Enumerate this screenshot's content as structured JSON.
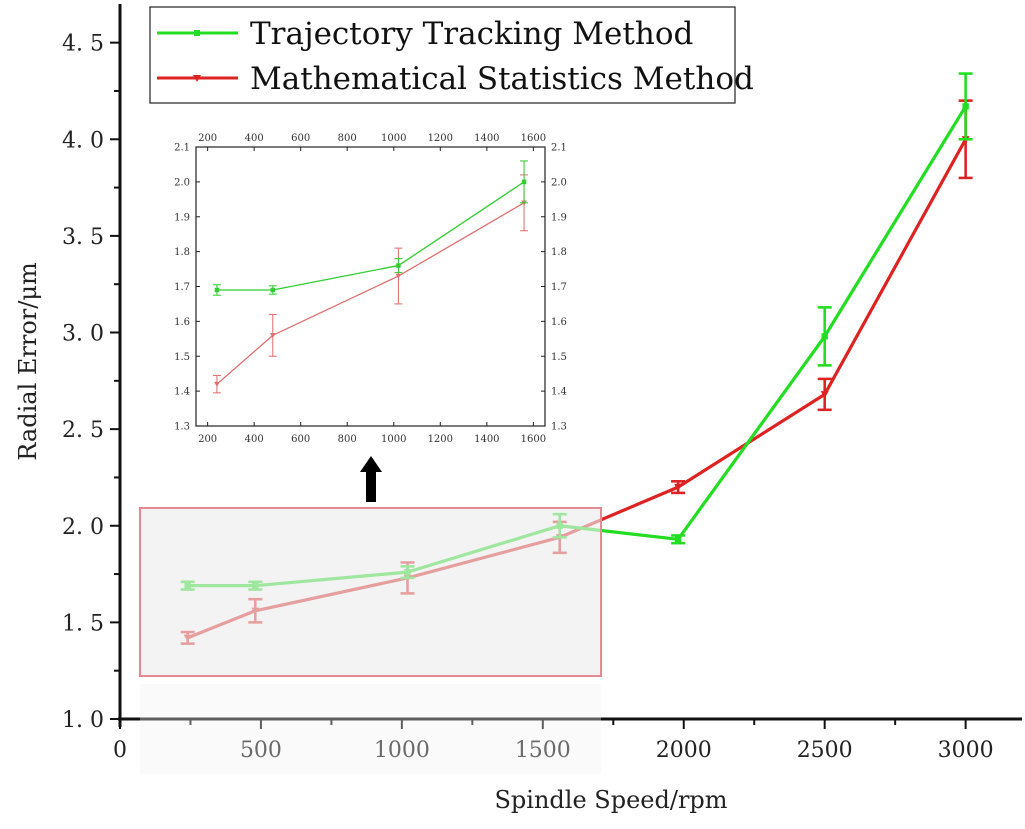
{
  "chart_data": [
    {
      "type": "line",
      "xlabel": "Spindle Speed/rpm",
      "ylabel": "Radial Error/μm",
      "xlim": [
        0,
        3200
      ],
      "ylim": [
        1.0,
        4.7
      ],
      "xticks": [
        0,
        500,
        1000,
        1500,
        2000,
        2500,
        3000
      ],
      "yticks": [
        1.0,
        1.5,
        2.0,
        2.5,
        3.0,
        3.5,
        4.0,
        4.5
      ],
      "legend_position": "top-left",
      "grid": false,
      "series": [
        {
          "name": "Trajectory Tracking Method",
          "color": "#22dd22",
          "marker": "square",
          "x": [
            240,
            480,
            1020,
            1560,
            1980,
            2500,
            3000
          ],
          "y": [
            1.69,
            1.69,
            1.76,
            2.0,
            1.93,
            2.98,
            4.17
          ],
          "err": [
            0.02,
            0.02,
            0.03,
            0.06,
            0.02,
            0.15,
            0.17
          ]
        },
        {
          "name": "Mathematical Statistics Method",
          "color": "#dd2222",
          "marker": "triangle-down",
          "x": [
            240,
            480,
            1020,
            1560,
            1980,
            2500,
            3000
          ],
          "y": [
            1.42,
            1.56,
            1.73,
            1.94,
            2.2,
            2.68,
            4.0
          ],
          "err": [
            0.03,
            0.06,
            0.08,
            0.08,
            0.03,
            0.08,
            0.2
          ]
        }
      ]
    },
    {
      "type": "line",
      "role": "inset",
      "xlim": [
        150,
        1650
      ],
      "ylim": [
        1.3,
        2.1
      ],
      "xticks": [
        200,
        400,
        600,
        800,
        1000,
        1200,
        1400,
        1600
      ],
      "yticks": [
        1.3,
        1.4,
        1.5,
        1.6,
        1.7,
        1.8,
        1.9,
        2.0,
        2.1
      ],
      "series": [
        {
          "name": "Trajectory Tracking Method",
          "color": "#33cc33",
          "x": [
            240,
            480,
            1020,
            1560
          ],
          "y": [
            1.69,
            1.69,
            1.76,
            2.0
          ],
          "err": [
            0.015,
            0.012,
            0.02,
            0.06
          ]
        },
        {
          "name": "Mathematical Statistics Method",
          "color": "#e07070",
          "x": [
            240,
            480,
            1020,
            1560
          ],
          "y": [
            1.42,
            1.56,
            1.73,
            1.94
          ],
          "err": [
            0.025,
            0.06,
            0.08,
            0.08
          ]
        }
      ]
    }
  ]
}
